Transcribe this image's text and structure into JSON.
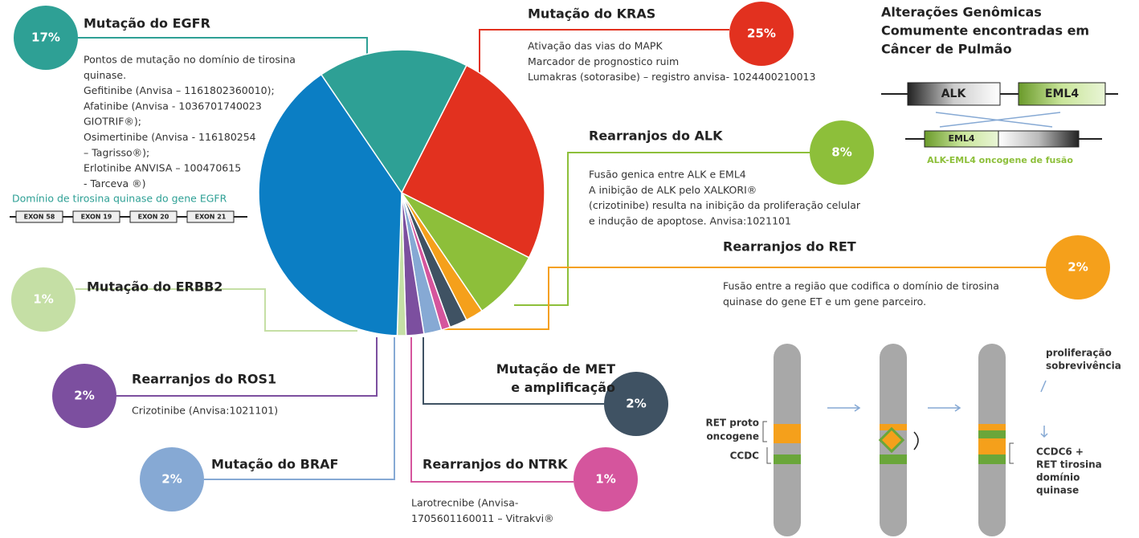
{
  "chart_data": {
    "type": "pie",
    "categories": [
      "Mutação do KRAS",
      "Rearranjos do ALK",
      "Rearranjos do RET",
      "Mutação de MET e amplificação",
      "Rearranjos do NTRK",
      "Mutação do BRAF",
      "Rearranjos do ROS1",
      "Mutação do ERBB2",
      null,
      "Mutação do EGFR"
    ],
    "values": [
      25,
      8,
      2,
      2,
      1,
      2,
      2,
      1,
      40,
      17
    ],
    "value_labels": [
      "25%",
      "8%",
      "2%",
      "2%",
      "1%",
      "2%",
      "2%",
      "1%",
      null,
      "17%"
    ],
    "colors": [
      "#e2311f",
      "#8dbf3a",
      "#f5a01b",
      "#3f5263",
      "#d5559d",
      "#86a9d4",
      "#7c4f9f",
      "#c5dfa5",
      "#0b7ec4",
      "#2ea095"
    ],
    "descriptions": [
      [
        "Ativação das vias do MAPK",
        "Marcador de prognostico ruim",
        "Lumakras (sotorasibe) – registro anvisa- 1024400210013"
      ],
      [
        "Fusão genica entre ALK e EML4",
        "A inibição de ALK pelo XALKORI®",
        "(crizotinibe) resulta na inibição da proliferação celular",
        "e indução de apoptose. Anvisa:1021101"
      ],
      [
        "Fusão entre a região que codifica o domínio de tirosina",
        "quinase do gene ET e um gene parceiro."
      ],
      [],
      [
        "Larotrecnibe (Anvisa-",
        "1705601160011 – Vitrakvi®"
      ],
      [],
      [
        "Crizotinibe (Anvisa:1021101)"
      ],
      [],
      [],
      [
        "Pontos de mutação no domínio de tirosina",
        "quinase.",
        "Gefitinibe (Anvisa – 1161802360010);",
        "Afatinibe (Anvisa - 1036701740023",
        "GIOTRIF®);",
        "Osimertinibe (Anvisa - 116180254",
        "– Tagrisso®);",
        "Erlotinibe ANVISA – 100470615",
        "- Tarceva ®)"
      ]
    ]
  },
  "egfr_domain": {
    "caption": "Domínio de tirosina quinase do gene EGFR",
    "exons": [
      "EXON 58",
      "EXON 19",
      "EXON 20",
      "EXON 21"
    ]
  },
  "alk_panel": {
    "title": [
      "Alterações Genômicas",
      "Comumente encontradas em",
      "Câncer de Pulmão"
    ],
    "gene_a": "ALK",
    "gene_b": "EML4",
    "fusion_gene": "EML4",
    "caption": "ALK-EML4 oncogene de fusão"
  },
  "ret_panel": {
    "left_labels": [
      "RET proto",
      "oncogene",
      "CCDC"
    ],
    "outcome": [
      "proliferação",
      "sobrevivência"
    ],
    "result": [
      "CCDC6 +",
      "RET tirosina",
      "domínio",
      "quinase"
    ]
  }
}
